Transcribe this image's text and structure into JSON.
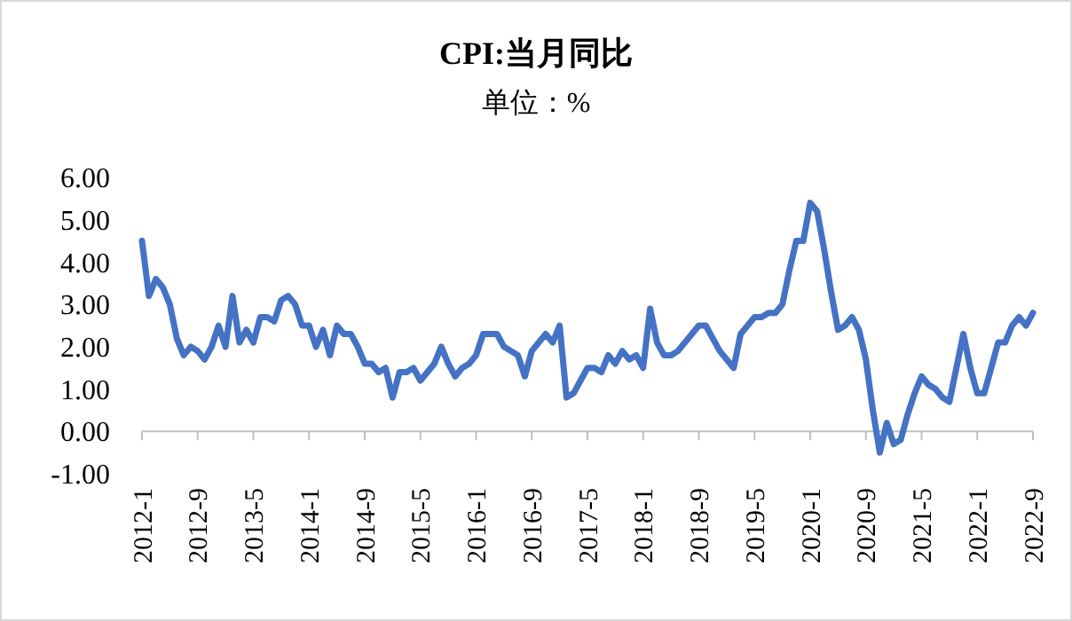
{
  "chart_data": {
    "type": "line",
    "title": "CPI:当月同比",
    "subtitle": "单位：%",
    "categories": [
      "2012-1",
      null,
      null,
      null,
      null,
      null,
      null,
      null,
      "2012-9",
      null,
      null,
      null,
      null,
      null,
      null,
      null,
      "2013-5",
      null,
      null,
      null,
      null,
      null,
      null,
      null,
      "2014-1",
      null,
      null,
      null,
      null,
      null,
      null,
      null,
      "2014-9",
      null,
      null,
      null,
      null,
      null,
      null,
      null,
      "2015-5",
      null,
      null,
      null,
      null,
      null,
      null,
      null,
      "2016-1",
      null,
      null,
      null,
      null,
      null,
      null,
      null,
      "2016-9",
      null,
      null,
      null,
      null,
      null,
      null,
      null,
      "2017-5",
      null,
      null,
      null,
      null,
      null,
      null,
      null,
      "2018-1",
      null,
      null,
      null,
      null,
      null,
      null,
      null,
      "2018-9",
      null,
      null,
      null,
      null,
      null,
      null,
      null,
      "2019-5",
      null,
      null,
      null,
      null,
      null,
      null,
      null,
      "2020-1",
      null,
      null,
      null,
      null,
      null,
      null,
      null,
      "2020-9",
      null,
      null,
      null,
      null,
      null,
      null,
      null,
      "2021-5",
      null,
      null,
      null,
      null,
      null,
      null,
      null,
      "2022-1",
      null,
      null,
      null,
      null,
      null,
      null,
      null,
      "2022-9"
    ],
    "series": [
      {
        "color": "#4472c4",
        "values": [
          4.5,
          3.2,
          3.6,
          3.4,
          3.0,
          2.2,
          1.8,
          2.0,
          1.9,
          1.7,
          2.0,
          2.5,
          2.0,
          3.2,
          2.1,
          2.4,
          2.1,
          2.7,
          2.7,
          2.6,
          3.1,
          3.2,
          3.0,
          2.5,
          2.5,
          2.0,
          2.4,
          1.8,
          2.5,
          2.3,
          2.3,
          2.0,
          1.6,
          1.6,
          1.4,
          1.5,
          0.8,
          1.4,
          1.4,
          1.5,
          1.2,
          1.4,
          1.6,
          2.0,
          1.6,
          1.3,
          1.5,
          1.6,
          1.8,
          2.3,
          2.3,
          2.3,
          2.0,
          1.9,
          1.8,
          1.3,
          1.9,
          2.1,
          2.3,
          2.1,
          2.5,
          0.8,
          0.9,
          1.2,
          1.5,
          1.5,
          1.4,
          1.8,
          1.6,
          1.9,
          1.7,
          1.8,
          1.5,
          2.9,
          2.1,
          1.8,
          1.8,
          1.9,
          2.1,
          2.3,
          2.5,
          2.5,
          2.2,
          1.9,
          1.7,
          1.5,
          2.3,
          2.5,
          2.7,
          2.7,
          2.8,
          2.8,
          3.0,
          3.8,
          4.5,
          4.5,
          5.4,
          5.2,
          4.3,
          3.3,
          2.4,
          2.5,
          2.7,
          2.4,
          1.7,
          0.5,
          -0.5,
          0.2,
          -0.3,
          -0.2,
          0.4,
          0.9,
          1.3,
          1.1,
          1.0,
          0.8,
          0.7,
          1.5,
          2.3,
          1.5,
          0.9,
          0.9,
          1.5,
          2.1,
          2.1,
          2.5,
          2.7,
          2.5,
          2.8
        ]
      }
    ],
    "ylim": [
      -1,
      6
    ],
    "yticks": [
      {
        "value": -1,
        "label": "-1.00"
      },
      {
        "value": 0,
        "label": "0.00"
      },
      {
        "value": 1,
        "label": "1.00"
      },
      {
        "value": 2,
        "label": "2.00"
      },
      {
        "value": 3,
        "label": "3.00"
      },
      {
        "value": 4,
        "label": "4.00"
      },
      {
        "value": 5,
        "label": "5.00"
      },
      {
        "value": 6,
        "label": "6.00"
      }
    ],
    "grid": false
  }
}
